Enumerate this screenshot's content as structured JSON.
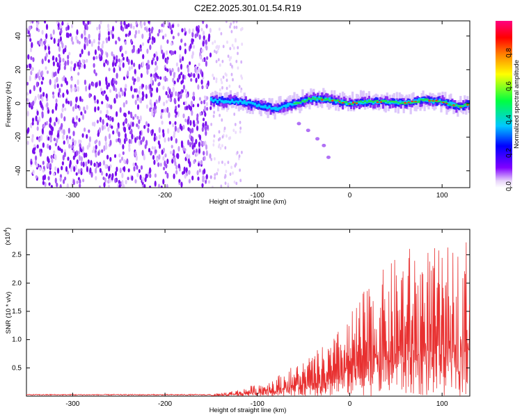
{
  "title": "C2E2.2025.301.01.54.R19",
  "chart_data": [
    {
      "type": "heatmap",
      "xlabel": "Height of straight line (km)",
      "ylabel": "Frequency (Hz)",
      "xlim": [
        -350,
        130
      ],
      "ylim": [
        -50,
        49
      ],
      "x_ticks": [
        -300,
        -200,
        -100,
        0,
        100
      ],
      "y_ticks": [
        -40,
        -20,
        0,
        20,
        40
      ],
      "ridge_center_hz": [
        {
          "x": -150,
          "y": 2
        },
        {
          "x": -120,
          "y": 1
        },
        {
          "x": -100,
          "y": -1
        },
        {
          "x": -80,
          "y": -3
        },
        {
          "x": -60,
          "y": 0
        },
        {
          "x": -40,
          "y": 3
        },
        {
          "x": -20,
          "y": 2
        },
        {
          "x": 0,
          "y": 0
        },
        {
          "x": 20,
          "y": 1
        },
        {
          "x": 40,
          "y": 1
        },
        {
          "x": 60,
          "y": 0
        },
        {
          "x": 80,
          "y": 2
        },
        {
          "x": 100,
          "y": 1
        },
        {
          "x": 120,
          "y": -2
        },
        {
          "x": 130,
          "y": 0
        }
      ],
      "side_streak": [
        {
          "x": -55,
          "y": -12
        },
        {
          "x": -45,
          "y": -16
        },
        {
          "x": -35,
          "y": -21
        },
        {
          "x": -28,
          "y": -25
        },
        {
          "x": -23,
          "y": -32
        }
      ],
      "noise_region_x": [
        -350,
        -150
      ]
    },
    {
      "type": "colorbar",
      "label": "Normalized spectral amplitude",
      "range": [
        0.0,
        1.0
      ],
      "ticks": [
        {
          "value": 0.0,
          "label": "0.0"
        },
        {
          "value": 0.2,
          "label": "0.2"
        },
        {
          "value": 0.4,
          "label": "0.4"
        },
        {
          "value": 0.6,
          "label": "0.6"
        },
        {
          "value": 0.8,
          "label": "0.8"
        }
      ],
      "colormap": [
        "#e8d4fa",
        "#8000ff",
        "#0000ff",
        "#00c8ff",
        "#00ff40",
        "#ffff00",
        "#ff8000",
        "#ff0000",
        "#ff0080"
      ]
    },
    {
      "type": "line",
      "color": "#e83030",
      "xlabel": "Height of straight line (km)",
      "ylabel": "SNR (10 * v/v)",
      "y_scale_label": "(x10",
      "y_scale_exp": "4",
      "xlim": [
        -350,
        130
      ],
      "ylim": [
        0,
        2.95
      ],
      "x_ticks": [
        -300,
        -200,
        -100,
        0,
        100
      ],
      "y_ticks": [
        0.5,
        1.0,
        1.5,
        2.0,
        2.5
      ],
      "y_tick_labels": [
        "0.5",
        "1.0",
        "1.5",
        "2.0",
        "2.5"
      ],
      "envelope": {
        "x": [
          -350,
          -150,
          -120,
          -100,
          -80,
          -60,
          -40,
          -20,
          0,
          20,
          40,
          60,
          80,
          100,
          120,
          128
        ],
        "y": [
          0.02,
          0.03,
          0.12,
          0.22,
          0.35,
          0.55,
          0.75,
          1.0,
          1.45,
          2.0,
          2.3,
          2.65,
          2.7,
          2.6,
          2.7,
          2.85
        ]
      }
    }
  ]
}
